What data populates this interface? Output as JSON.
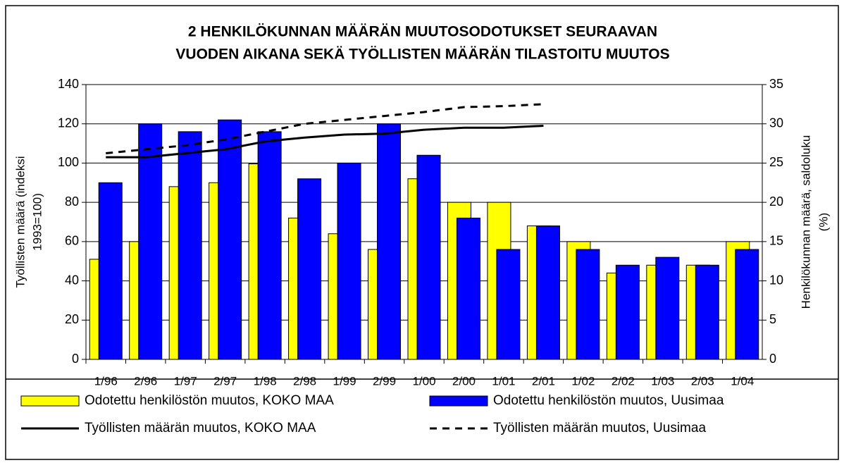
{
  "chart_data": {
    "type": "bar",
    "title": [
      "2 HENKILÖKUNNAN MÄÄRÄN MUUTOSODOTUKSET SEURAAVAN",
      "VUODEN AIKANA SEKÄ TYÖLLISTEN MÄÄRÄN TILASTOITU MUUTOS"
    ],
    "ylabel": [
      "Työllisten määrä (indeksi",
      "1993=100)"
    ],
    "y2label": [
      "Henkilökunnan määrä, saldoluku",
      "(%)"
    ],
    "categories": [
      "1/96",
      "2/96",
      "1/97",
      "2/97",
      "1/98",
      "2/98",
      "1/99",
      "2/99",
      "1/00",
      "2/00",
      "1/01",
      "2/01",
      "1/02",
      "2/02",
      "1/03",
      "2/03",
      "1/04"
    ],
    "ylim": [
      0,
      140
    ],
    "yticks": [
      0,
      20,
      40,
      60,
      80,
      100,
      120,
      140
    ],
    "y2lim": [
      0,
      35
    ],
    "y2ticks": [
      0,
      5,
      10,
      15,
      20,
      25,
      30,
      35
    ],
    "grid": true,
    "series": [
      {
        "name": "Odotettu henkilöstön muutos, KOKO MAA",
        "type": "bar",
        "axis": "y2",
        "color": "#ffff00",
        "values": [
          12.75,
          15,
          22,
          22.5,
          24.9,
          18,
          16,
          14,
          23,
          20,
          20,
          17,
          15,
          11,
          12,
          12,
          15
        ]
      },
      {
        "name": "Odotettu henkilöstön muutos, Uusimaa",
        "type": "bar",
        "axis": "y2",
        "color": "#0000ff",
        "values": [
          22.5,
          30,
          29,
          30.5,
          29,
          23,
          25,
          30,
          26,
          18,
          14,
          17,
          14,
          12,
          13,
          12,
          14
        ]
      },
      {
        "name": "Työllisten määrän muutos, KOKO MAA",
        "type": "line",
        "color": "#000000",
        "dash": false,
        "values": [
          103,
          103,
          105,
          107,
          111,
          113,
          114.5,
          115,
          117,
          118,
          118,
          119,
          null,
          null,
          null,
          null,
          null
        ]
      },
      {
        "name": "Työllisten määrän muutos, Uusimaa",
        "type": "line",
        "color": "#000000",
        "dash": true,
        "values": [
          105,
          107,
          109,
          112,
          116,
          120,
          122,
          124,
          126,
          128.5,
          129,
          130,
          null,
          null,
          null,
          null,
          null
        ]
      }
    ]
  }
}
